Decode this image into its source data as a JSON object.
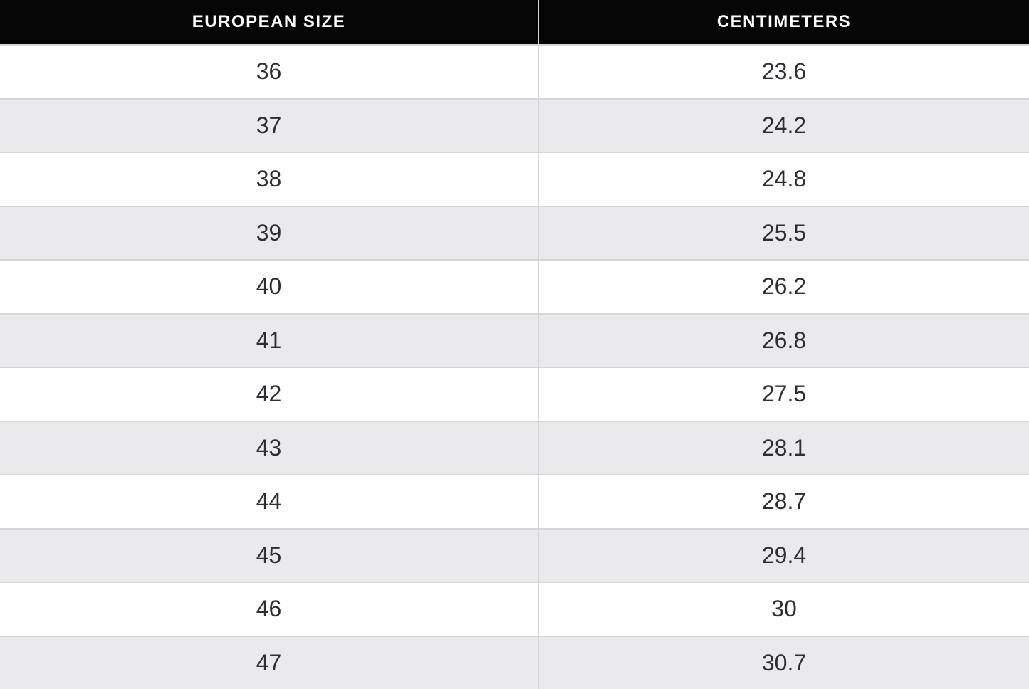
{
  "colors": {
    "header_bg": "#050505",
    "header_text": "#ffffff",
    "row_bg": "#ffffff",
    "row_alt_bg": "#eaeaec",
    "border": "#d6d6d8",
    "body_text": "#2e2e34"
  },
  "table": {
    "headers": {
      "size": "EUROPEAN SIZE",
      "cm": "CENTIMETERS"
    },
    "rows": [
      {
        "size": "36",
        "cm": "23.6"
      },
      {
        "size": "37",
        "cm": "24.2"
      },
      {
        "size": "38",
        "cm": "24.8"
      },
      {
        "size": "39",
        "cm": "25.5"
      },
      {
        "size": "40",
        "cm": "26.2"
      },
      {
        "size": "41",
        "cm": "26.8"
      },
      {
        "size": "42",
        "cm": "27.5"
      },
      {
        "size": "43",
        "cm": "28.1"
      },
      {
        "size": "44",
        "cm": "28.7"
      },
      {
        "size": "45",
        "cm": "29.4"
      },
      {
        "size": "46",
        "cm": "30"
      },
      {
        "size": "47",
        "cm": "30.7"
      }
    ]
  },
  "chart_data": {
    "type": "table",
    "columns": [
      "EUROPEAN SIZE",
      "CENTIMETERS"
    ],
    "rows": [
      [
        36,
        23.6
      ],
      [
        37,
        24.2
      ],
      [
        38,
        24.8
      ],
      [
        39,
        25.5
      ],
      [
        40,
        26.2
      ],
      [
        41,
        26.8
      ],
      [
        42,
        27.5
      ],
      [
        43,
        28.1
      ],
      [
        44,
        28.7
      ],
      [
        45,
        29.4
      ],
      [
        46,
        30
      ],
      [
        47,
        30.7
      ]
    ],
    "layout": {
      "header_style": "black background, white bold uppercase text",
      "row_striping": "white / light gray alternating starting white",
      "alignment": "center",
      "last_row_clipped": true
    }
  }
}
